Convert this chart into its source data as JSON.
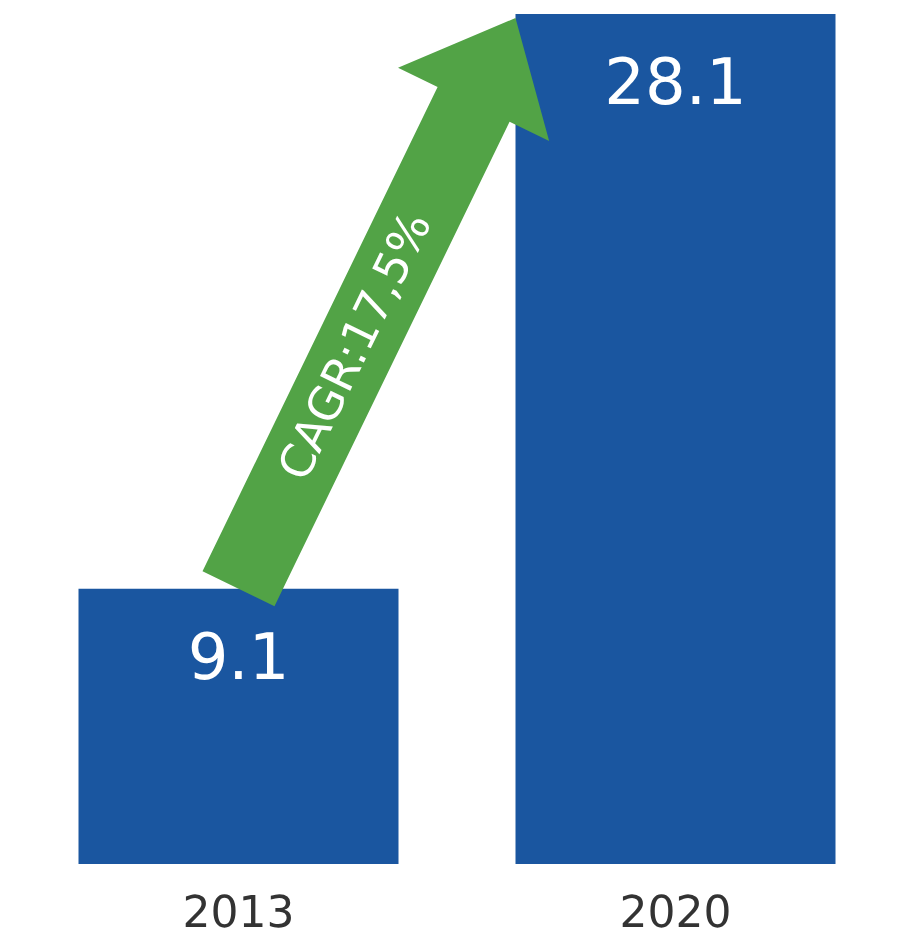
{
  "chart_data": {
    "type": "bar",
    "categories": [
      "2013",
      "2020"
    ],
    "values": [
      9.1,
      28.1
    ],
    "color": "#1a56a0",
    "data_labels": true,
    "annotations": [
      "CAGR:17,5%"
    ]
  }
}
